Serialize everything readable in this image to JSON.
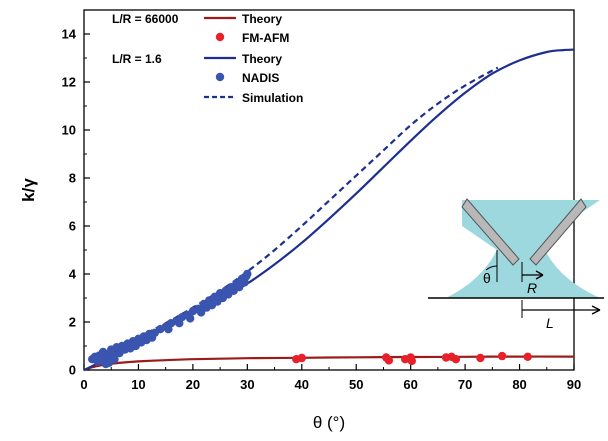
{
  "colors": {
    "theory_66000": "#9b1b1b",
    "fm_afm": "#e8202a",
    "theory_1_6": "#1d2f8f",
    "nadis": "#3a55b0",
    "simulation": "#1d2f8f",
    "inset_liquid": "#9ed8df",
    "inset_tip": "#b8b8b8"
  },
  "chart_data": {
    "type": "scatter",
    "title": "",
    "xlabel": "θ (°)",
    "ylabel": "k/γ",
    "xlim": [
      0,
      90
    ],
    "ylim": [
      0,
      15
    ],
    "xticks": [
      0,
      10,
      20,
      30,
      40,
      50,
      60,
      70,
      80,
      90
    ],
    "yticks": [
      0,
      2,
      4,
      6,
      8,
      10,
      12,
      14
    ],
    "grid": false,
    "legend": {
      "placement": "top-left",
      "groups": [
        {
          "ratio_label": "L/R = 66000",
          "entries": [
            {
              "series": "Theory",
              "symbol": "line",
              "color_key": "theory_66000"
            },
            {
              "series": "FM-AFM",
              "symbol": "dot",
              "color_key": "fm_afm"
            }
          ]
        },
        {
          "ratio_label": "L/R = 1.6",
          "entries": [
            {
              "series": "Theory",
              "symbol": "line",
              "color_key": "theory_1_6"
            },
            {
              "series": "NADIS",
              "symbol": "dot",
              "color_key": "nadis"
            },
            {
              "series": "Simulation",
              "symbol": "dash",
              "color_key": "simulation"
            }
          ]
        }
      ]
    },
    "series": [
      {
        "name": "Theory",
        "group": "L/R = 66000",
        "kind": "line",
        "color_key": "theory_66000",
        "points": [
          [
            0,
            0
          ],
          [
            1,
            0.08
          ],
          [
            2,
            0.14
          ],
          [
            3,
            0.19
          ],
          [
            4,
            0.23
          ],
          [
            5,
            0.26
          ],
          [
            7,
            0.31
          ],
          [
            10,
            0.36
          ],
          [
            15,
            0.41
          ],
          [
            20,
            0.45
          ],
          [
            25,
            0.47
          ],
          [
            30,
            0.49
          ],
          [
            40,
            0.51
          ],
          [
            50,
            0.53
          ],
          [
            60,
            0.54
          ],
          [
            70,
            0.55
          ],
          [
            80,
            0.56
          ],
          [
            90,
            0.56
          ]
        ]
      },
      {
        "name": "FM-AFM",
        "group": "L/R = 66000",
        "kind": "scatter",
        "color_key": "fm_afm",
        "points": [
          [
            39,
            0.45
          ],
          [
            40,
            0.5
          ],
          [
            55.5,
            0.52
          ],
          [
            56,
            0.4
          ],
          [
            59,
            0.45
          ],
          [
            60,
            0.52
          ],
          [
            60.2,
            0.38
          ],
          [
            66.5,
            0.52
          ],
          [
            67.5,
            0.55
          ],
          [
            68.3,
            0.45
          ],
          [
            72.8,
            0.5
          ],
          [
            76.8,
            0.58
          ],
          [
            81.5,
            0.55
          ]
        ]
      },
      {
        "name": "Theory",
        "group": "L/R = 1.6",
        "kind": "line",
        "color_key": "theory_1_6",
        "points": [
          [
            0,
            0
          ],
          [
            2,
            0.22
          ],
          [
            5,
            0.6
          ],
          [
            10,
            1.2
          ],
          [
            15,
            1.75
          ],
          [
            20,
            2.35
          ],
          [
            25,
            2.95
          ],
          [
            30,
            3.6
          ],
          [
            35,
            4.4
          ],
          [
            40,
            5.3
          ],
          [
            45,
            6.3
          ],
          [
            50,
            7.35
          ],
          [
            55,
            8.45
          ],
          [
            60,
            9.55
          ],
          [
            65,
            10.6
          ],
          [
            70,
            11.55
          ],
          [
            75,
            12.35
          ],
          [
            80,
            12.9
          ],
          [
            85,
            13.25
          ],
          [
            88,
            13.33
          ],
          [
            90,
            13.35
          ]
        ]
      },
      {
        "name": "Simulation",
        "group": "L/R = 1.6",
        "kind": "dashed-line",
        "color_key": "simulation",
        "points": [
          [
            2,
            0.3
          ],
          [
            5,
            0.7
          ],
          [
            10,
            1.35
          ],
          [
            15,
            1.95
          ],
          [
            20,
            2.6
          ],
          [
            25,
            3.3
          ],
          [
            30,
            4.1
          ],
          [
            35,
            5.0
          ],
          [
            40,
            6.0
          ],
          [
            45,
            7.05
          ],
          [
            50,
            8.1
          ],
          [
            55,
            9.15
          ],
          [
            60,
            10.2
          ],
          [
            65,
            11.1
          ],
          [
            70,
            11.85
          ],
          [
            76,
            12.6
          ]
        ]
      },
      {
        "name": "NADIS",
        "group": "L/R = 1.6",
        "kind": "scatter",
        "color_key": "nadis",
        "points": [
          [
            1.5,
            0.45
          ],
          [
            2,
            0.55
          ],
          [
            2.5,
            0.35
          ],
          [
            2.8,
            0.6
          ],
          [
            3.2,
            0.4
          ],
          [
            3.5,
            0.75
          ],
          [
            3.8,
            0.5
          ],
          [
            4,
            0.25
          ],
          [
            4.3,
            0.65
          ],
          [
            4.6,
            0.3
          ],
          [
            5,
            0.85
          ],
          [
            5.3,
            0.55
          ],
          [
            5.6,
            0.45
          ],
          [
            6,
            0.95
          ],
          [
            6.5,
            0.7
          ],
          [
            7,
            1.0
          ],
          [
            7.5,
            0.85
          ],
          [
            8,
            1.1
          ],
          [
            8.5,
            0.9
          ],
          [
            9,
            1.2
          ],
          [
            9.5,
            1.0
          ],
          [
            10,
            1.3
          ],
          [
            10.5,
            1.15
          ],
          [
            11,
            1.4
          ],
          [
            11.5,
            1.25
          ],
          [
            12,
            1.5
          ],
          [
            12.5,
            1.35
          ],
          [
            13,
            1.55
          ],
          [
            14,
            1.7
          ],
          [
            15,
            1.8
          ],
          [
            15.5,
            1.7
          ],
          [
            16,
            1.95
          ],
          [
            17,
            2.05
          ],
          [
            17.5,
            1.95
          ],
          [
            18,
            2.2
          ],
          [
            19,
            2.3
          ],
          [
            19.5,
            2.15
          ],
          [
            20,
            2.45
          ],
          [
            21,
            2.55
          ],
          [
            21.5,
            2.4
          ],
          [
            22,
            2.75
          ],
          [
            22.5,
            2.6
          ],
          [
            23,
            2.9
          ],
          [
            23.5,
            2.7
          ],
          [
            24,
            3.05
          ],
          [
            24.5,
            2.85
          ],
          [
            25,
            3.2
          ],
          [
            25.5,
            3.0
          ],
          [
            26,
            3.3
          ],
          [
            26.5,
            3.15
          ],
          [
            27,
            3.45
          ],
          [
            27.5,
            3.3
          ],
          [
            28,
            3.6
          ],
          [
            28.5,
            3.45
          ],
          [
            29,
            3.8
          ],
          [
            29.5,
            3.65
          ],
          [
            30,
            4.0
          ],
          [
            29.8,
            3.9
          ],
          [
            28.2,
            3.5
          ],
          [
            26.2,
            3.25
          ]
        ]
      }
    ],
    "inset": {
      "labels": {
        "theta": "θ",
        "R": "R",
        "L": "L"
      }
    }
  }
}
